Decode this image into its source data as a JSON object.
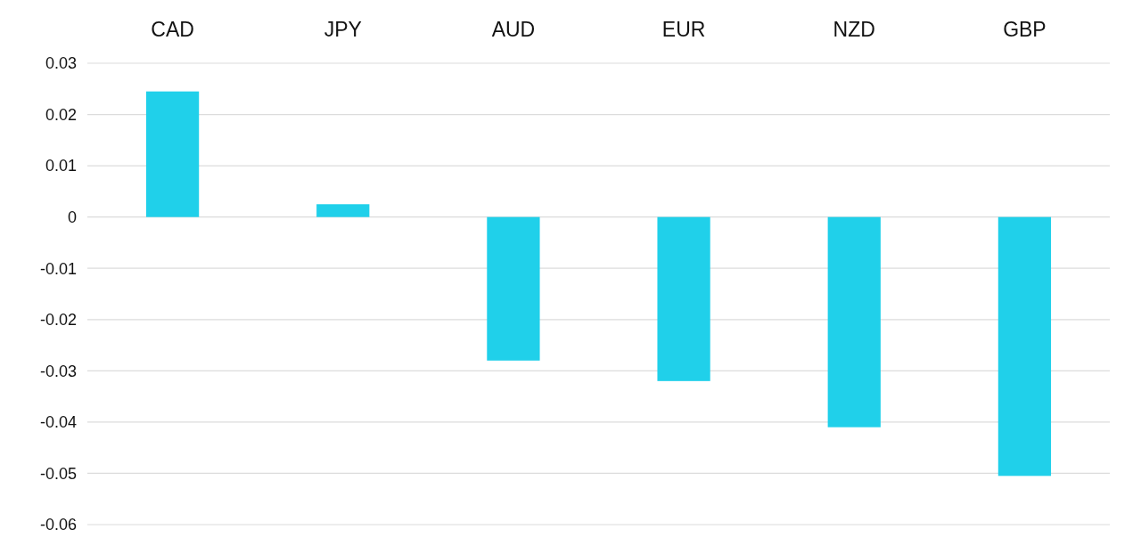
{
  "chart_data": {
    "type": "bar",
    "categories": [
      "CAD",
      "JPY",
      "AUD",
      "EUR",
      "NZD",
      "GBP"
    ],
    "values": [
      0.0245,
      0.0025,
      -0.028,
      -0.032,
      -0.041,
      -0.0505
    ],
    "color": "#20d0ea",
    "ylim": [
      -0.06,
      0.03
    ],
    "yticks": [
      -0.06,
      -0.05,
      -0.04,
      -0.03,
      -0.02,
      -0.01,
      0,
      0.01,
      0.02,
      0.03
    ],
    "grid": "y"
  }
}
